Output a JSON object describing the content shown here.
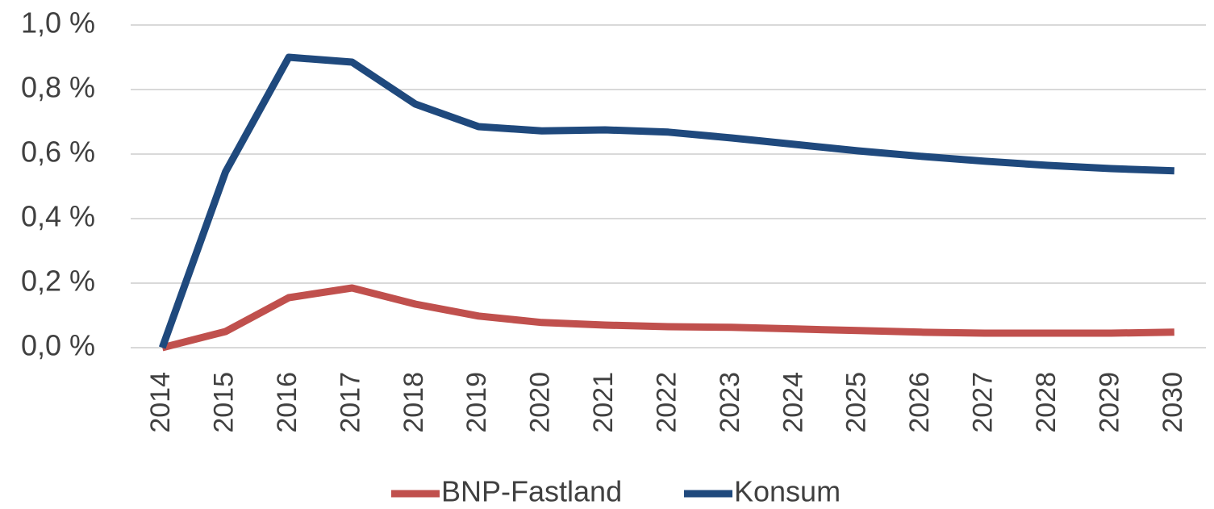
{
  "chart_data": {
    "type": "line",
    "categories": [
      "2014",
      "2015",
      "2016",
      "2017",
      "2018",
      "2019",
      "2020",
      "2021",
      "2022",
      "2023",
      "2024",
      "2025",
      "2026",
      "2027",
      "2028",
      "2029",
      "2030"
    ],
    "series": [
      {
        "name": "BNP-Fastland",
        "color": "#c0504d",
        "values": [
          0,
          0.05,
          0.155,
          0.185,
          0.135,
          0.098,
          0.078,
          0.07,
          0.065,
          0.063,
          0.058,
          0.053,
          0.048,
          0.045,
          0.045,
          0.045,
          0.048
        ]
      },
      {
        "name": "Konsum",
        "color": "#1f497d",
        "values": [
          0,
          0.545,
          0.9,
          0.885,
          0.755,
          0.685,
          0.672,
          0.675,
          0.668,
          0.65,
          0.63,
          0.61,
          0.593,
          0.578,
          0.565,
          0.555,
          0.548
        ]
      }
    ],
    "ylim": [
      0,
      1
    ],
    "yticks": [
      {
        "value": 0,
        "label": "0,0 %"
      },
      {
        "value": 0.2,
        "label": "0,2 %"
      },
      {
        "value": 0.4,
        "label": "0,4 %"
      },
      {
        "value": 0.6,
        "label": "0,6 %"
      },
      {
        "value": 0.8,
        "label": "0,8 %"
      },
      {
        "value": 1,
        "label": "1,0 %"
      }
    ],
    "grid": true,
    "legend": "bottom"
  }
}
